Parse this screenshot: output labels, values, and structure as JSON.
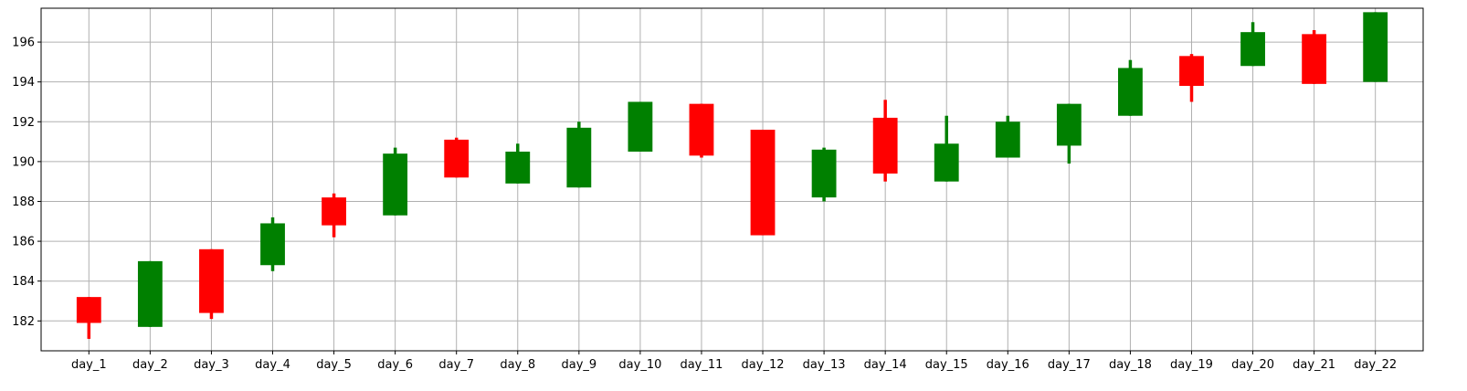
{
  "chart_data": {
    "type": "candlestick",
    "title": "",
    "xlabel": "",
    "ylabel": "",
    "ylim": [
      180.5,
      197.7
    ],
    "yticks": [
      182,
      184,
      186,
      188,
      190,
      192,
      194,
      196
    ],
    "grid": true,
    "colors": {
      "up": "#008000",
      "down": "#ff0000",
      "grid": "#b0b0b0",
      "axis": "#000000"
    },
    "categories": [
      "day_1",
      "day_2",
      "day_3",
      "day_4",
      "day_5",
      "day_6",
      "day_7",
      "day_8",
      "day_9",
      "day_10",
      "day_11",
      "day_12",
      "day_13",
      "day_14",
      "day_15",
      "day_16",
      "day_17",
      "day_18",
      "day_19",
      "day_20",
      "day_21",
      "day_22"
    ],
    "series": [
      {
        "values": [
          {
            "open": 183.2,
            "close": 181.9,
            "high": 183.2,
            "low": 181.1
          },
          {
            "open": 181.7,
            "close": 185.0,
            "high": 185.0,
            "low": 181.7
          },
          {
            "open": 185.6,
            "close": 182.4,
            "high": 185.6,
            "low": 182.1
          },
          {
            "open": 184.8,
            "close": 186.9,
            "high": 187.2,
            "low": 184.5
          },
          {
            "open": 188.2,
            "close": 186.8,
            "high": 188.4,
            "low": 186.2
          },
          {
            "open": 187.3,
            "close": 190.4,
            "high": 190.7,
            "low": 187.3
          },
          {
            "open": 191.1,
            "close": 189.2,
            "high": 191.2,
            "low": 189.2
          },
          {
            "open": 188.9,
            "close": 190.5,
            "high": 190.9,
            "low": 188.9
          },
          {
            "open": 188.7,
            "close": 191.7,
            "high": 192.0,
            "low": 188.7
          },
          {
            "open": 190.5,
            "close": 193.0,
            "high": 193.0,
            "low": 190.5
          },
          {
            "open": 192.9,
            "close": 190.3,
            "high": 192.9,
            "low": 190.2
          },
          {
            "open": 191.6,
            "close": 186.3,
            "high": 191.6,
            "low": 186.3
          },
          {
            "open": 188.2,
            "close": 190.6,
            "high": 190.7,
            "low": 188.0
          },
          {
            "open": 192.2,
            "close": 189.4,
            "high": 193.1,
            "low": 189.0
          },
          {
            "open": 189.0,
            "close": 190.9,
            "high": 192.3,
            "low": 189.0
          },
          {
            "open": 190.2,
            "close": 192.0,
            "high": 192.3,
            "low": 190.2
          },
          {
            "open": 190.8,
            "close": 192.9,
            "high": 192.9,
            "low": 189.9
          },
          {
            "open": 192.3,
            "close": 194.7,
            "high": 195.1,
            "low": 192.3
          },
          {
            "open": 195.3,
            "close": 193.8,
            "high": 195.4,
            "low": 193.0
          },
          {
            "open": 194.8,
            "close": 196.5,
            "high": 197.0,
            "low": 194.8
          },
          {
            "open": 196.4,
            "close": 193.9,
            "high": 196.6,
            "low": 193.9
          },
          {
            "open": 194.0,
            "close": 197.5,
            "high": 197.5,
            "low": 194.0
          }
        ]
      }
    ]
  }
}
